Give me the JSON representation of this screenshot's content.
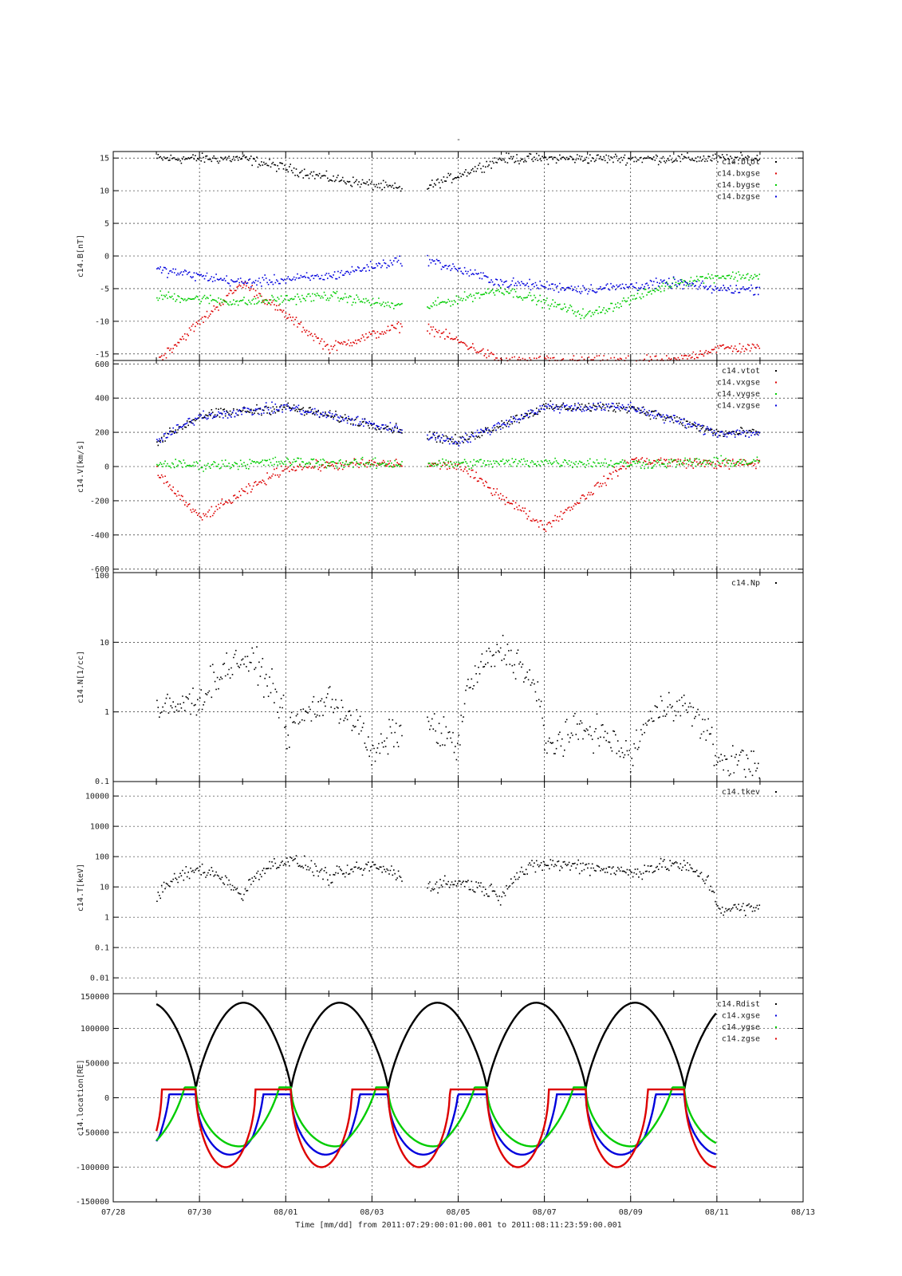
{
  "figure": {
    "title": "-",
    "xlabel": "Time [mm/dd]  from 2011:07:29:00:01:00.001  to  2011:08:11:23:59:00.001",
    "x_ticks": [
      "07/28",
      "07/30",
      "08/01",
      "08/03",
      "08/05",
      "08/07",
      "08/09",
      "08/11",
      "08/13"
    ]
  },
  "chart_data": [
    {
      "type": "scatter",
      "ylabel": "c14.B[nT]",
      "ylim": [
        -16,
        16
      ],
      "y_ticks": [
        "15",
        "10",
        "5",
        "0",
        "-5",
        "-10",
        "-15"
      ],
      "y_tick_values": [
        15,
        10,
        5,
        0,
        -5,
        -10,
        -15
      ],
      "x_range_days": [
        "07/28",
        "08/13"
      ],
      "legend": "top-right",
      "grid": true,
      "series": [
        {
          "name": "c14.btot",
          "color": "#000000",
          "x": [
            "07/29",
            "07/31",
            "08/02",
            "08/04",
            "08/06",
            "08/08",
            "08/10"
          ],
          "y": [
            15,
            15,
            12,
            10,
            15,
            15,
            15
          ]
        },
        {
          "name": "c14.bxgse",
          "color": "#dd0000",
          "x": [
            "07/29",
            "07/31",
            "08/02",
            "08/04",
            "08/06",
            "08/08",
            "08/10",
            "08/11"
          ],
          "y": [
            -16,
            -4,
            -14,
            -10,
            -16,
            -16,
            -16,
            -14
          ]
        },
        {
          "name": "c14.bygse",
          "color": "#00cc00",
          "x": [
            "07/29",
            "07/31",
            "08/02",
            "08/04",
            "08/06",
            "08/08",
            "08/10",
            "08/11"
          ],
          "y": [
            -6,
            -7,
            -6,
            -8,
            -5,
            -9,
            -4,
            -3
          ]
        },
        {
          "name": "c14.bzgse",
          "color": "#0000dd",
          "x": [
            "07/29",
            "07/31",
            "08/02",
            "08/04",
            "08/06",
            "08/08",
            "08/10",
            "08/11"
          ],
          "y": [
            -2,
            -4,
            -3,
            0,
            -4,
            -5,
            -4,
            -5
          ]
        }
      ]
    },
    {
      "type": "scatter",
      "ylabel": "c14.V[km/s]",
      "ylim": [
        -620,
        620
      ],
      "y_ticks": [
        "600",
        "400",
        "200",
        "0",
        "-200",
        "-400",
        "-600"
      ],
      "y_tick_values": [
        600,
        400,
        200,
        0,
        -200,
        -400,
        -600
      ],
      "legend": "top-right",
      "grid": true,
      "series": [
        {
          "name": "c14.vtot",
          "color": "#000000",
          "x": [
            "07/29",
            "07/30",
            "08/01",
            "08/03",
            "08/05",
            "08/07",
            "08/09",
            "08/11"
          ],
          "y": [
            150,
            300,
            350,
            250,
            150,
            350,
            350,
            200
          ]
        },
        {
          "name": "c14.vxgse",
          "color": "#dd0000",
          "x": [
            "07/29",
            "07/30",
            "08/01",
            "08/03",
            "08/05",
            "08/07",
            "08/09",
            "08/11"
          ],
          "y": [
            -30,
            -300,
            0,
            20,
            10,
            -350,
            40,
            20
          ]
        },
        {
          "name": "c14.vygse",
          "color": "#00cc00",
          "x": [
            "07/29",
            "07/30",
            "08/01",
            "08/03",
            "08/05",
            "08/07",
            "08/09",
            "08/11"
          ],
          "y": [
            20,
            10,
            30,
            20,
            20,
            30,
            20,
            30
          ]
        },
        {
          "name": "c14.vzgse",
          "color": "#0000dd",
          "x": [
            "07/29",
            "07/30",
            "08/01",
            "08/03",
            "08/05",
            "08/07",
            "08/09",
            "08/11"
          ],
          "y": [
            150,
            300,
            350,
            250,
            150,
            350,
            350,
            200
          ]
        }
      ]
    },
    {
      "type": "scatter",
      "scale": "log",
      "ylabel": "c14.N[1/cc]",
      "ylim": [
        0.1,
        100
      ],
      "y_ticks": [
        "100",
        "10",
        "1",
        "0.1"
      ],
      "y_tick_values": [
        100,
        10,
        1,
        0.1
      ],
      "legend": "top-right",
      "grid": true,
      "series": [
        {
          "name": "c14.Np",
          "color": "#000000",
          "x": [
            "07/29",
            "07/30",
            "07/31",
            "08/01",
            "08/02",
            "08/03",
            "08/04",
            "08/05",
            "08/06",
            "08/07",
            "08/08",
            "08/09",
            "08/10",
            "08/11"
          ],
          "y": [
            1,
            1.5,
            6,
            0.5,
            1.5,
            0.2,
            0.8,
            0.3,
            8,
            0.3,
            0.6,
            0.2,
            1.5,
            0.2
          ]
        }
      ]
    },
    {
      "type": "scatter",
      "scale": "log",
      "ylabel": "c14.T[keV]",
      "ylim": [
        0.003,
        30000
      ],
      "y_ticks": [
        "10000",
        "1000",
        "100",
        "10",
        "1",
        "0.1",
        "0.01"
      ],
      "y_tick_values": [
        10000,
        1000,
        100,
        10,
        1,
        0.1,
        0.01
      ],
      "legend": "top-right",
      "grid": true,
      "series": [
        {
          "name": "c14.tkev",
          "color": "#000000",
          "x": [
            "07/29",
            "07/30",
            "07/31",
            "08/01",
            "08/02",
            "08/03",
            "08/04",
            "08/05",
            "08/06",
            "08/07",
            "08/08",
            "08/09",
            "08/10",
            "08/11"
          ],
          "y": [
            3,
            40,
            3,
            80,
            20,
            50,
            10,
            15,
            5,
            60,
            50,
            30,
            60,
            2
          ]
        }
      ]
    },
    {
      "type": "line",
      "ylabel": "c14.location[RE]",
      "ylim": [
        -150000,
        150000
      ],
      "y_ticks": [
        "150000",
        "100000",
        "50000",
        "0",
        "-50000",
        "-100000",
        "-150000"
      ],
      "y_tick_values": [
        150000,
        100000,
        50000,
        0,
        -50000,
        -100000,
        -150000
      ],
      "legend": "top-right",
      "grid": true,
      "orbit_periapsis_dates": [
        "07/29 22:00",
        "08/01 03:00",
        "08/03 09:00",
        "08/05 16:00",
        "08/07 23:00",
        "08/10 06:00"
      ],
      "series": [
        {
          "name": "c14.Rdist",
          "color": "#000000",
          "peak": 137000,
          "perigee": 12000
        },
        {
          "name": "c14.xgse",
          "color": "#0000dd",
          "min": -82000,
          "max": 5000
        },
        {
          "name": "c14.ygse",
          "color": "#00cc00",
          "min": -70000,
          "max": 15000
        },
        {
          "name": "c14.zgse",
          "color": "#dd0000",
          "min": -100000,
          "max": 12000
        }
      ]
    }
  ]
}
